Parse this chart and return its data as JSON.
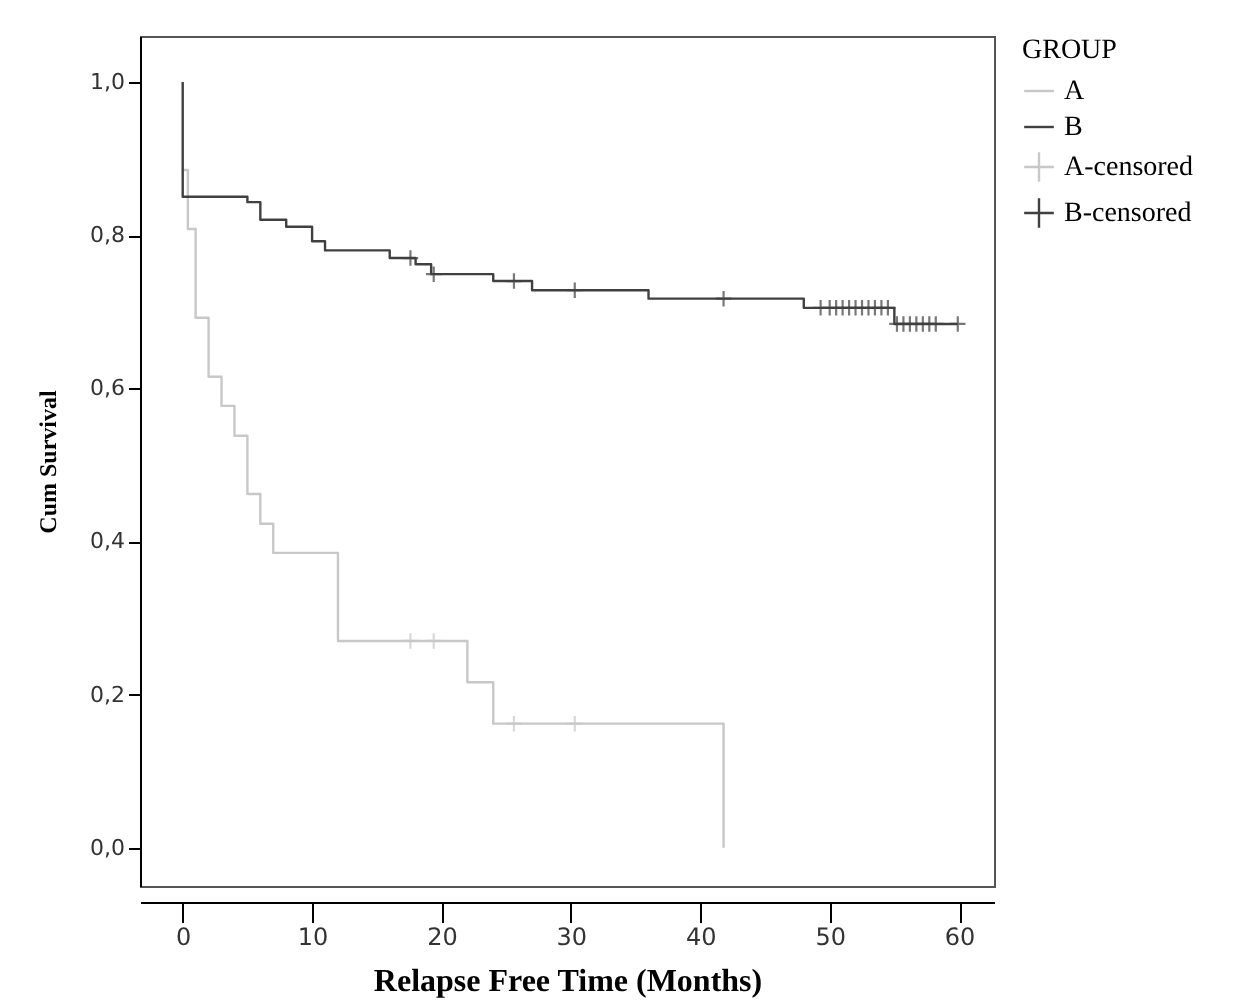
{
  "chart_data": {
    "type": "step",
    "xlabel": "Relapse Free Time (Months)",
    "ylabel": "Cum Survival",
    "legend_title": "GROUP",
    "xlim": [
      -3.3,
      62.7
    ],
    "xticks": [
      0,
      10,
      20,
      30,
      40,
      50,
      60
    ],
    "ylim": [
      -0.05,
      1.06
    ],
    "yticks": [
      {
        "value": 0,
        "label": "0,0"
      },
      {
        "value": 0.2,
        "label": "0,2"
      },
      {
        "value": 0.4,
        "label": "0,4"
      },
      {
        "value": 0.6,
        "label": "0,6"
      },
      {
        "value": 0.8,
        "label": "0,8"
      },
      {
        "value": 1,
        "label": "1,0"
      }
    ],
    "grid": false,
    "legend": "top right",
    "line_style": "solid",
    "series": [
      {
        "name": "A",
        "color": "#c8c8c8",
        "x": [
          0,
          0.4,
          1,
          2,
          3,
          4,
          5,
          6,
          7,
          12,
          22,
          24,
          41.8,
          41.8
        ],
        "values": [
          0.885,
          0.808,
          0.692,
          0.615,
          0.577,
          0.538,
          0.462,
          0.423,
          0.385,
          0.27,
          0.216,
          0.162,
          0.162,
          0
        ]
      },
      {
        "name": "B",
        "color": "#404040",
        "x": [
          0,
          0,
          5,
          6,
          8,
          10,
          11,
          16,
          18,
          19.2,
          24,
          27,
          36,
          48,
          55,
          59.9
        ],
        "values": [
          1.0,
          0.85,
          0.843,
          0.82,
          0.811,
          0.792,
          0.78,
          0.77,
          0.762,
          0.749,
          0.74,
          0.728,
          0.717,
          0.705,
          0.684,
          0.684
        ]
      },
      {
        "name": "A-censored",
        "type": "scatter",
        "marker": "cross",
        "color": "#c8c8c8",
        "x": [
          17.6,
          19.4,
          25.6,
          30.3
        ],
        "values": [
          0.27,
          0.27,
          0.162,
          0.162
        ]
      },
      {
        "name": "B-censored",
        "type": "scatter",
        "marker": "cross",
        "color": "#404040",
        "x": [
          17.6,
          19.4,
          25.6,
          30.3,
          41.8,
          49.3,
          50,
          50.5,
          51,
          51.5,
          52,
          52.5,
          53,
          53.5,
          54,
          54.5,
          55.2,
          55.7,
          56.2,
          56.7,
          57.2,
          57.7,
          58.2,
          59.9
        ],
        "values": [
          0.77,
          0.749,
          0.74,
          0.728,
          0.717,
          0.705,
          0.705,
          0.705,
          0.705,
          0.705,
          0.705,
          0.705,
          0.705,
          0.705,
          0.705,
          0.705,
          0.684,
          0.684,
          0.684,
          0.684,
          0.684,
          0.684,
          0.684,
          0.684
        ]
      }
    ]
  }
}
